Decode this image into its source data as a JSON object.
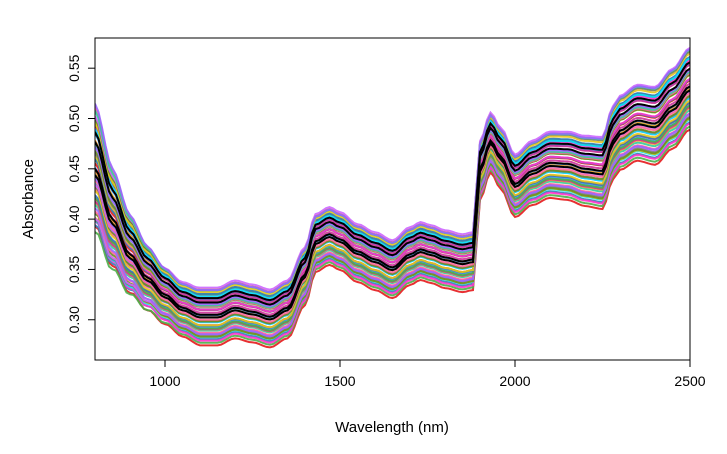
{
  "chart_data": {
    "type": "line",
    "title": "",
    "xlabel": "Wavelength (nm)",
    "ylabel": "Absorbance",
    "xlim": [
      800,
      2500
    ],
    "ylim": [
      0.26,
      0.58
    ],
    "x_ticks": [
      1000,
      1500,
      2000,
      2500
    ],
    "y_ticks": [
      0.3,
      0.35,
      0.4,
      0.45,
      0.5,
      0.55
    ],
    "x_tick_labels": [
      "1000",
      "1500",
      "2000",
      "2500"
    ],
    "y_tick_labels": [
      "0.30",
      "0.35",
      "0.40",
      "0.45",
      "0.50",
      "0.55"
    ],
    "grid": false,
    "legend": "none",
    "series_count": 60,
    "base_spectrum": {
      "x": [
        800,
        850,
        900,
        950,
        1000,
        1050,
        1100,
        1150,
        1200,
        1250,
        1300,
        1350,
        1400,
        1430,
        1470,
        1500,
        1550,
        1600,
        1650,
        1700,
        1730,
        1760,
        1800,
        1850,
        1880,
        1900,
        1930,
        1960,
        2000,
        2050,
        2100,
        2150,
        2200,
        2250,
        2280,
        2300,
        2350,
        2400,
        2450,
        2500
      ],
      "y": [
        0.45,
        0.4,
        0.365,
        0.342,
        0.325,
        0.312,
        0.305,
        0.305,
        0.312,
        0.308,
        0.303,
        0.312,
        0.345,
        0.378,
        0.385,
        0.38,
        0.368,
        0.36,
        0.352,
        0.365,
        0.37,
        0.367,
        0.362,
        0.358,
        0.36,
        0.45,
        0.478,
        0.462,
        0.435,
        0.448,
        0.456,
        0.455,
        0.45,
        0.448,
        0.478,
        0.488,
        0.498,
        0.495,
        0.512,
        0.532
      ]
    },
    "series_colors": [
      "#e41a1c",
      "#4daf4a",
      "#377eb8",
      "#ff33cc",
      "#00e5ff",
      "#e6c619",
      "#7a7a7a",
      "#6b8e23",
      "#cc66ff",
      "#ff6699",
      "#33cc99",
      "#9966ff",
      "#66cc33",
      "#ff9933",
      "#3399ff",
      "#cc3399"
    ],
    "highlight_color": "#000000"
  },
  "axes": {
    "x_title": "Wavelength (nm)",
    "y_title": "Absorbance"
  }
}
